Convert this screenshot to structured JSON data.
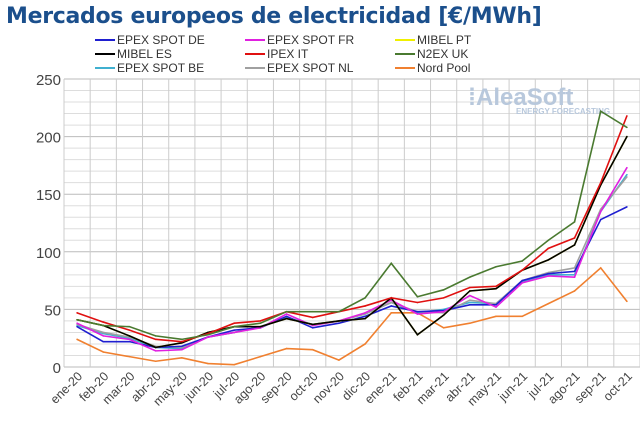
{
  "chart_data": {
    "type": "line",
    "title": "Mercados europeos de electricidad [€/MWh]",
    "xlabel": "",
    "ylabel": "",
    "ylim": [
      0,
      250
    ],
    "yticks": [
      0,
      50,
      100,
      150,
      200,
      250
    ],
    "grid": true,
    "legend_position": "top",
    "watermark": "AleaSoft ENERGY FORECASTING",
    "categories": [
      "ene-20",
      "feb-20",
      "mar-20",
      "abr-20",
      "may-20",
      "jun-20",
      "jul-20",
      "ago-20",
      "sep-20",
      "oct-20",
      "nov-20",
      "dic-20",
      "ene-21",
      "feb-21",
      "mar-21",
      "abr-21",
      "may-21",
      "jun-21",
      "jul-21",
      "ago-21",
      "sep-21",
      "oct-21"
    ],
    "series": [
      {
        "name": "EPEX SPOT DE",
        "color": "#1f1fd0",
        "values": [
          35,
          22,
          22,
          17,
          18,
          26,
          32,
          34,
          44,
          34,
          38,
          44,
          53,
          48,
          49,
          54,
          54,
          75,
          81,
          83,
          128,
          139
        ]
      },
      {
        "name": "EPEX SPOT FR",
        "color": "#e020e0",
        "values": [
          38,
          27,
          24,
          14,
          15,
          26,
          30,
          34,
          46,
          36,
          40,
          47,
          58,
          46,
          48,
          62,
          52,
          73,
          79,
          78,
          135,
          173
        ]
      },
      {
        "name": "MIBEL PT",
        "color": "#f0f000",
        "values": [
          41,
          36,
          27,
          17,
          21,
          30,
          35,
          35,
          42,
          37,
          40,
          42,
          60,
          28,
          45,
          66,
          68,
          84,
          93,
          106,
          158,
          200
        ]
      },
      {
        "name": "MIBEL ES",
        "color": "#000000",
        "values": [
          41,
          36,
          27,
          17,
          21,
          30,
          35,
          35,
          42,
          37,
          40,
          42,
          60,
          28,
          45,
          66,
          68,
          84,
          93,
          106,
          158,
          200
        ]
      },
      {
        "name": "IPEX IT",
        "color": "#e01010",
        "values": [
          47,
          39,
          32,
          24,
          22,
          29,
          38,
          40,
          48,
          43,
          48,
          53,
          60,
          56,
          60,
          69,
          70,
          84,
          103,
          112,
          160,
          218
        ]
      },
      {
        "name": "N2EX UK",
        "color": "#4a7a30",
        "values": [
          41,
          36,
          35,
          27,
          24,
          28,
          35,
          38,
          48,
          48,
          48,
          60,
          90,
          61,
          67,
          78,
          87,
          92,
          110,
          126,
          222,
          208
        ]
      },
      {
        "name": "EPEX SPOT BE",
        "color": "#40b0d0",
        "values": [
          36,
          29,
          25,
          17,
          16,
          26,
          30,
          35,
          43,
          37,
          40,
          46,
          56,
          47,
          50,
          56,
          55,
          74,
          80,
          80,
          135,
          167
        ]
      },
      {
        "name": "EPEX SPOT NL",
        "color": "#a0a0a0",
        "values": [
          37,
          30,
          26,
          18,
          17,
          26,
          30,
          35,
          42,
          37,
          40,
          46,
          56,
          48,
          47,
          58,
          55,
          75,
          82,
          86,
          137,
          165
        ]
      },
      {
        "name": "Nord Pool",
        "color": "#f08030",
        "values": [
          24,
          13,
          9,
          5,
          8,
          3,
          2,
          9,
          16,
          15,
          6,
          20,
          47,
          47,
          34,
          38,
          44,
          44,
          55,
          66,
          86,
          57
        ]
      }
    ]
  }
}
